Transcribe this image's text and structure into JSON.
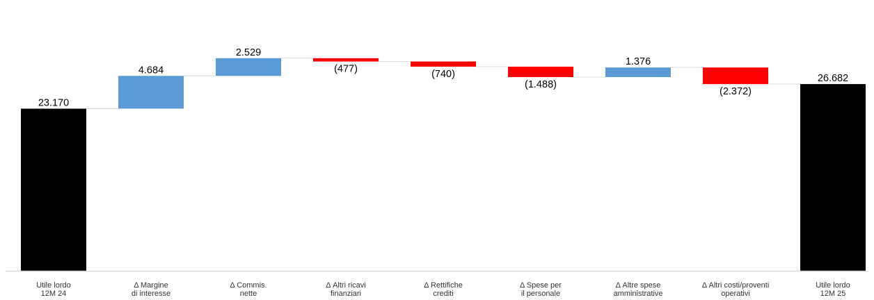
{
  "chart_data": {
    "type": "bar",
    "variant": "waterfall",
    "title": "",
    "xlabel": "",
    "ylabel": "",
    "ylim": [
      0,
      28000
    ],
    "grid": false,
    "legend": "none",
    "categories": [
      [
        "Utile lordo",
        "12M 24"
      ],
      [
        "Δ Margine",
        "di interesse"
      ],
      [
        "Δ Commis.",
        "nette"
      ],
      [
        "Δ Altri ricavi",
        "finanziari"
      ],
      [
        "Δ Rettifiche",
        "crediti"
      ],
      [
        "Δ Spese per",
        "il personale"
      ],
      [
        "Δ Altre spese",
        "amministrative"
      ],
      [
        "Δ Altri costi/proventi",
        "operativi"
      ],
      [
        "Utile lordo",
        "12M 25"
      ]
    ],
    "values": [
      23170,
      4684,
      2529,
      -477,
      -740,
      -1488,
      1376,
      -2372,
      26682
    ],
    "kinds": [
      "total",
      "delta",
      "delta",
      "delta",
      "delta",
      "delta",
      "delta",
      "delta",
      "total"
    ],
    "data_labels": [
      "23.170",
      "4.684",
      "2.529",
      "(477)",
      "(740)",
      "(1.488)",
      "1.376",
      "(2.372)",
      "26.682"
    ],
    "colors": {
      "total": "#000000",
      "increase": "#5b9bd5",
      "decrease": "#ff0000",
      "connector": "#d9d9d9",
      "axis": "#d9d9d9"
    }
  }
}
